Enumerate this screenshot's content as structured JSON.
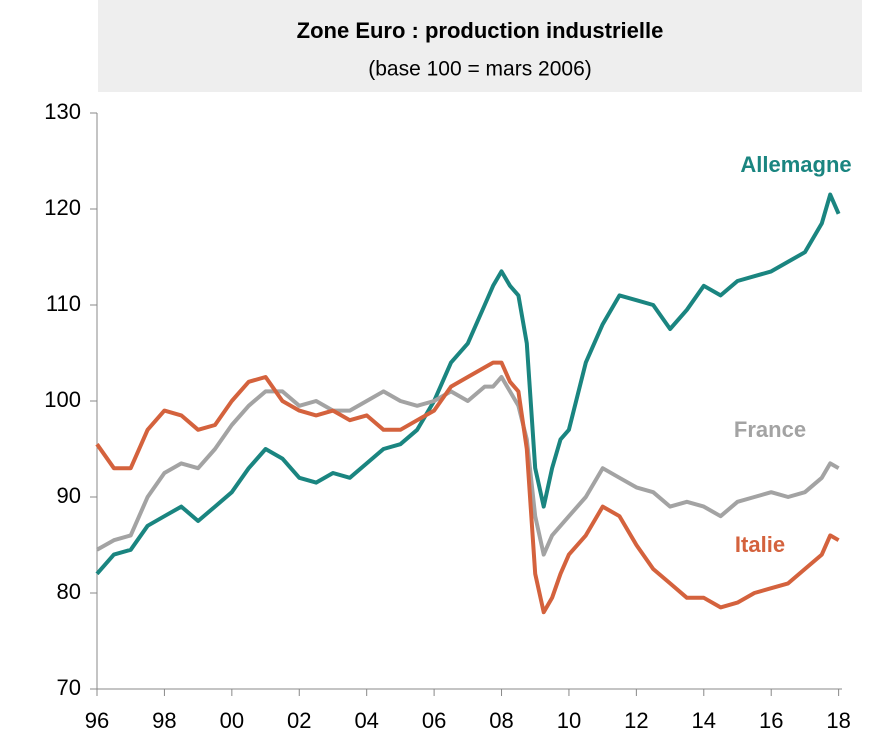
{
  "chart_data": {
    "type": "line",
    "title": "Zone Euro : production industrielle",
    "subtitle": "(base 100 = mars 2006)",
    "x": [
      1996.0,
      1996.5,
      1997.0,
      1997.5,
      1998.0,
      1998.5,
      1999.0,
      1999.5,
      2000.0,
      2000.5,
      2001.0,
      2001.5,
      2002.0,
      2002.5,
      2003.0,
      2003.5,
      2004.0,
      2004.5,
      2005.0,
      2005.5,
      2006.0,
      2006.5,
      2007.0,
      2007.5,
      2007.75,
      2008.0,
      2008.25,
      2008.5,
      2008.75,
      2009.0,
      2009.25,
      2009.5,
      2009.75,
      2010.0,
      2010.5,
      2011.0,
      2011.5,
      2012.0,
      2012.5,
      2013.0,
      2013.5,
      2014.0,
      2014.5,
      2015.0,
      2015.5,
      2016.0,
      2016.5,
      2017.0,
      2017.5,
      2017.75,
      2018.0
    ],
    "series": [
      {
        "name": "Allemagne",
        "color": "#1a8580",
        "values": [
          82,
          84,
          84.5,
          87,
          88,
          89,
          87.5,
          89,
          90.5,
          93,
          95,
          94,
          92,
          91.5,
          92.5,
          92,
          93.5,
          95,
          95.5,
          97,
          100,
          104,
          106,
          110,
          112,
          113.5,
          112,
          111,
          106,
          93,
          89,
          93,
          96,
          97,
          104,
          108,
          111,
          110.5,
          110,
          107.5,
          109.5,
          112,
          111,
          112.5,
          113,
          113.5,
          114.5,
          115.5,
          118.5,
          121.5,
          119.5
        ]
      },
      {
        "name": "France",
        "color": "#a3a3a3",
        "values": [
          84.5,
          85.5,
          86,
          90,
          92.5,
          93.5,
          93,
          95,
          97.5,
          99.5,
          101,
          101,
          99.5,
          100,
          99,
          99,
          100,
          101,
          100,
          99.5,
          100,
          101,
          100,
          101.5,
          101.5,
          102.5,
          101,
          99.5,
          96,
          88,
          84,
          86,
          87,
          88,
          90,
          93,
          92,
          91,
          90.5,
          89,
          89.5,
          89,
          88,
          89.5,
          90,
          90.5,
          90,
          90.5,
          92,
          93.5,
          93
        ]
      },
      {
        "name": "Italie",
        "color": "#d4623d",
        "values": [
          95.5,
          93,
          93,
          97,
          99,
          98.5,
          97,
          97.5,
          100,
          102,
          102.5,
          100,
          99,
          98.5,
          99,
          98,
          98.5,
          97,
          97,
          98,
          99,
          101.5,
          102.5,
          103.5,
          104,
          104,
          102,
          101,
          95,
          82,
          78,
          79.5,
          82,
          84,
          86,
          89,
          88,
          85,
          82.5,
          81,
          79.5,
          79.5,
          78.5,
          79,
          80,
          80.5,
          81,
          82.5,
          84,
          86,
          85.5
        ]
      }
    ],
    "xlim": [
      1996,
      2018.1
    ],
    "xticks": [
      {
        "value": 1996,
        "label": "96"
      },
      {
        "value": 1998,
        "label": "98"
      },
      {
        "value": 2000,
        "label": "00"
      },
      {
        "value": 2002,
        "label": "02"
      },
      {
        "value": 2004,
        "label": "04"
      },
      {
        "value": 2006,
        "label": "06"
      },
      {
        "value": 2008,
        "label": "08"
      },
      {
        "value": 2010,
        "label": "10"
      },
      {
        "value": 2012,
        "label": "12"
      },
      {
        "value": 2014,
        "label": "14"
      },
      {
        "value": 2016,
        "label": "16"
      },
      {
        "value": 2018,
        "label": "18"
      }
    ],
    "ylim": [
      70,
      130
    ],
    "yticks": [
      70,
      80,
      90,
      100,
      110,
      120,
      130
    ]
  }
}
